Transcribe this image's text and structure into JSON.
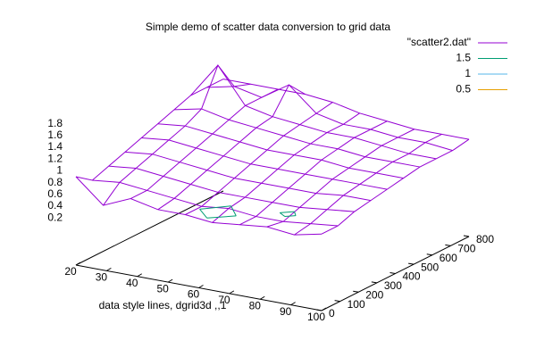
{
  "chart_data": {
    "type": "surface3d",
    "title": "Simple demo of scatter data conversion to grid data",
    "xlabel": "data style lines, dgrid3d ,,1",
    "x": [
      20,
      28.9,
      37.8,
      46.7,
      55.6,
      64.4,
      73.3,
      82.2,
      91.1,
      100
    ],
    "y": [
      0,
      88.9,
      177.8,
      266.7,
      355.6,
      444.4,
      533.3,
      622.2,
      711.1,
      800
    ],
    "z": [
      [
        0.9,
        0.5,
        0.7,
        0.6,
        0.6,
        0.55,
        0.6,
        0.65,
        0.6,
        0.7
      ],
      [
        0.7,
        0.75,
        0.7,
        0.65,
        0.6,
        0.65,
        0.6,
        0.6,
        0.65,
        0.7
      ],
      [
        0.8,
        0.85,
        0.8,
        0.75,
        0.7,
        0.7,
        0.7,
        0.7,
        0.75,
        0.8
      ],
      [
        0.9,
        0.95,
        0.9,
        0.85,
        0.8,
        0.8,
        0.8,
        0.8,
        0.85,
        0.85
      ],
      [
        1.0,
        1.05,
        1.0,
        0.95,
        0.9,
        0.9,
        0.9,
        0.9,
        0.9,
        0.9
      ],
      [
        1.1,
        1.15,
        1.1,
        1.05,
        1.0,
        1.0,
        1.0,
        0.95,
        0.95,
        0.95
      ],
      [
        1.2,
        1.3,
        1.2,
        1.15,
        1.1,
        1.05,
        1.05,
        1.0,
        1.0,
        1.0
      ],
      [
        1.3,
        1.9,
        1.3,
        1.2,
        1.15,
        1.1,
        1.1,
        1.05,
        1.0,
        1.0
      ],
      [
        1.3,
        1.4,
        1.3,
        1.6,
        1.2,
        1.1,
        1.1,
        1.05,
        1.05,
        1.0
      ],
      [
        1.3,
        1.3,
        1.3,
        1.3,
        1.25,
        1.15,
        1.1,
        1.05,
        1.05,
        1.05
      ]
    ],
    "series": [
      {
        "name": "\"scatter2.dat\"",
        "color": "#9400d3"
      },
      {
        "name": "1.5",
        "color": "#009e73",
        "level": 1.5
      },
      {
        "name": "1",
        "color": "#56b4e9",
        "level": 1
      },
      {
        "name": "0.5",
        "color": "#e69f00",
        "level": 0.5
      }
    ],
    "xlim": [
      20,
      100
    ],
    "ylim": [
      0,
      800
    ],
    "zlim": [
      -0.6,
      1.8
    ],
    "xticks": [
      20,
      30,
      40,
      50,
      60,
      70,
      80,
      90,
      100
    ],
    "yticks": [
      0,
      100,
      200,
      300,
      400,
      500,
      600,
      700,
      800
    ],
    "zticks": [
      0.2,
      0.4,
      0.6,
      0.8,
      1,
      1.2,
      1.4,
      1.6,
      1.8
    ]
  }
}
